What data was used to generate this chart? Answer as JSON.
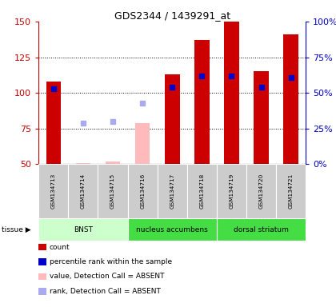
{
  "title": "GDS2344 / 1439291_at",
  "samples": [
    "GSM134713",
    "GSM134714",
    "GSM134715",
    "GSM134716",
    "GSM134717",
    "GSM134718",
    "GSM134719",
    "GSM134720",
    "GSM134721"
  ],
  "count_values": [
    108,
    null,
    null,
    null,
    113,
    137,
    150,
    115,
    141
  ],
  "count_absent_values": [
    null,
    51,
    52,
    79,
    null,
    null,
    null,
    null,
    null
  ],
  "rank_values_left": [
    103,
    null,
    null,
    null,
    104,
    112,
    112,
    104,
    111
  ],
  "rank_absent_values_left": [
    null,
    79,
    80,
    93,
    null,
    null,
    null,
    null,
    null
  ],
  "ylim_left": [
    50,
    150
  ],
  "ylim_right": [
    0,
    100
  ],
  "yticks_left": [
    50,
    75,
    100,
    125,
    150
  ],
  "yticks_right": [
    0,
    25,
    50,
    75,
    100
  ],
  "ytick_labels_right": [
    "0%",
    "25%",
    "50%",
    "75%",
    "100%"
  ],
  "bar_width": 0.5,
  "marker_size": 4,
  "bar_color_present": "#cc0000",
  "bar_color_absent": "#ffbbbb",
  "rank_color_present": "#0000cc",
  "rank_color_absent": "#aaaaee",
  "plot_bg": "#ffffff",
  "left_axis_color": "#cc0000",
  "right_axis_color": "#0000cc",
  "gridline_color": "black",
  "gridline_lw": 0.7,
  "legend_items": [
    {
      "color": "#cc0000",
      "label": "count"
    },
    {
      "color": "#0000cc",
      "label": "percentile rank within the sample"
    },
    {
      "color": "#ffbbbb",
      "label": "value, Detection Call = ABSENT"
    },
    {
      "color": "#aaaaee",
      "label": "rank, Detection Call = ABSENT"
    }
  ],
  "tissue_defs": [
    {
      "label": "BNST",
      "start": 0,
      "end": 3,
      "color": "#ccffcc"
    },
    {
      "label": "nucleus accumbens",
      "start": 3,
      "end": 6,
      "color": "#44dd44"
    },
    {
      "label": "dorsal striatum",
      "start": 6,
      "end": 9,
      "color": "#44dd44"
    }
  ],
  "sample_box_color": "#cccccc"
}
